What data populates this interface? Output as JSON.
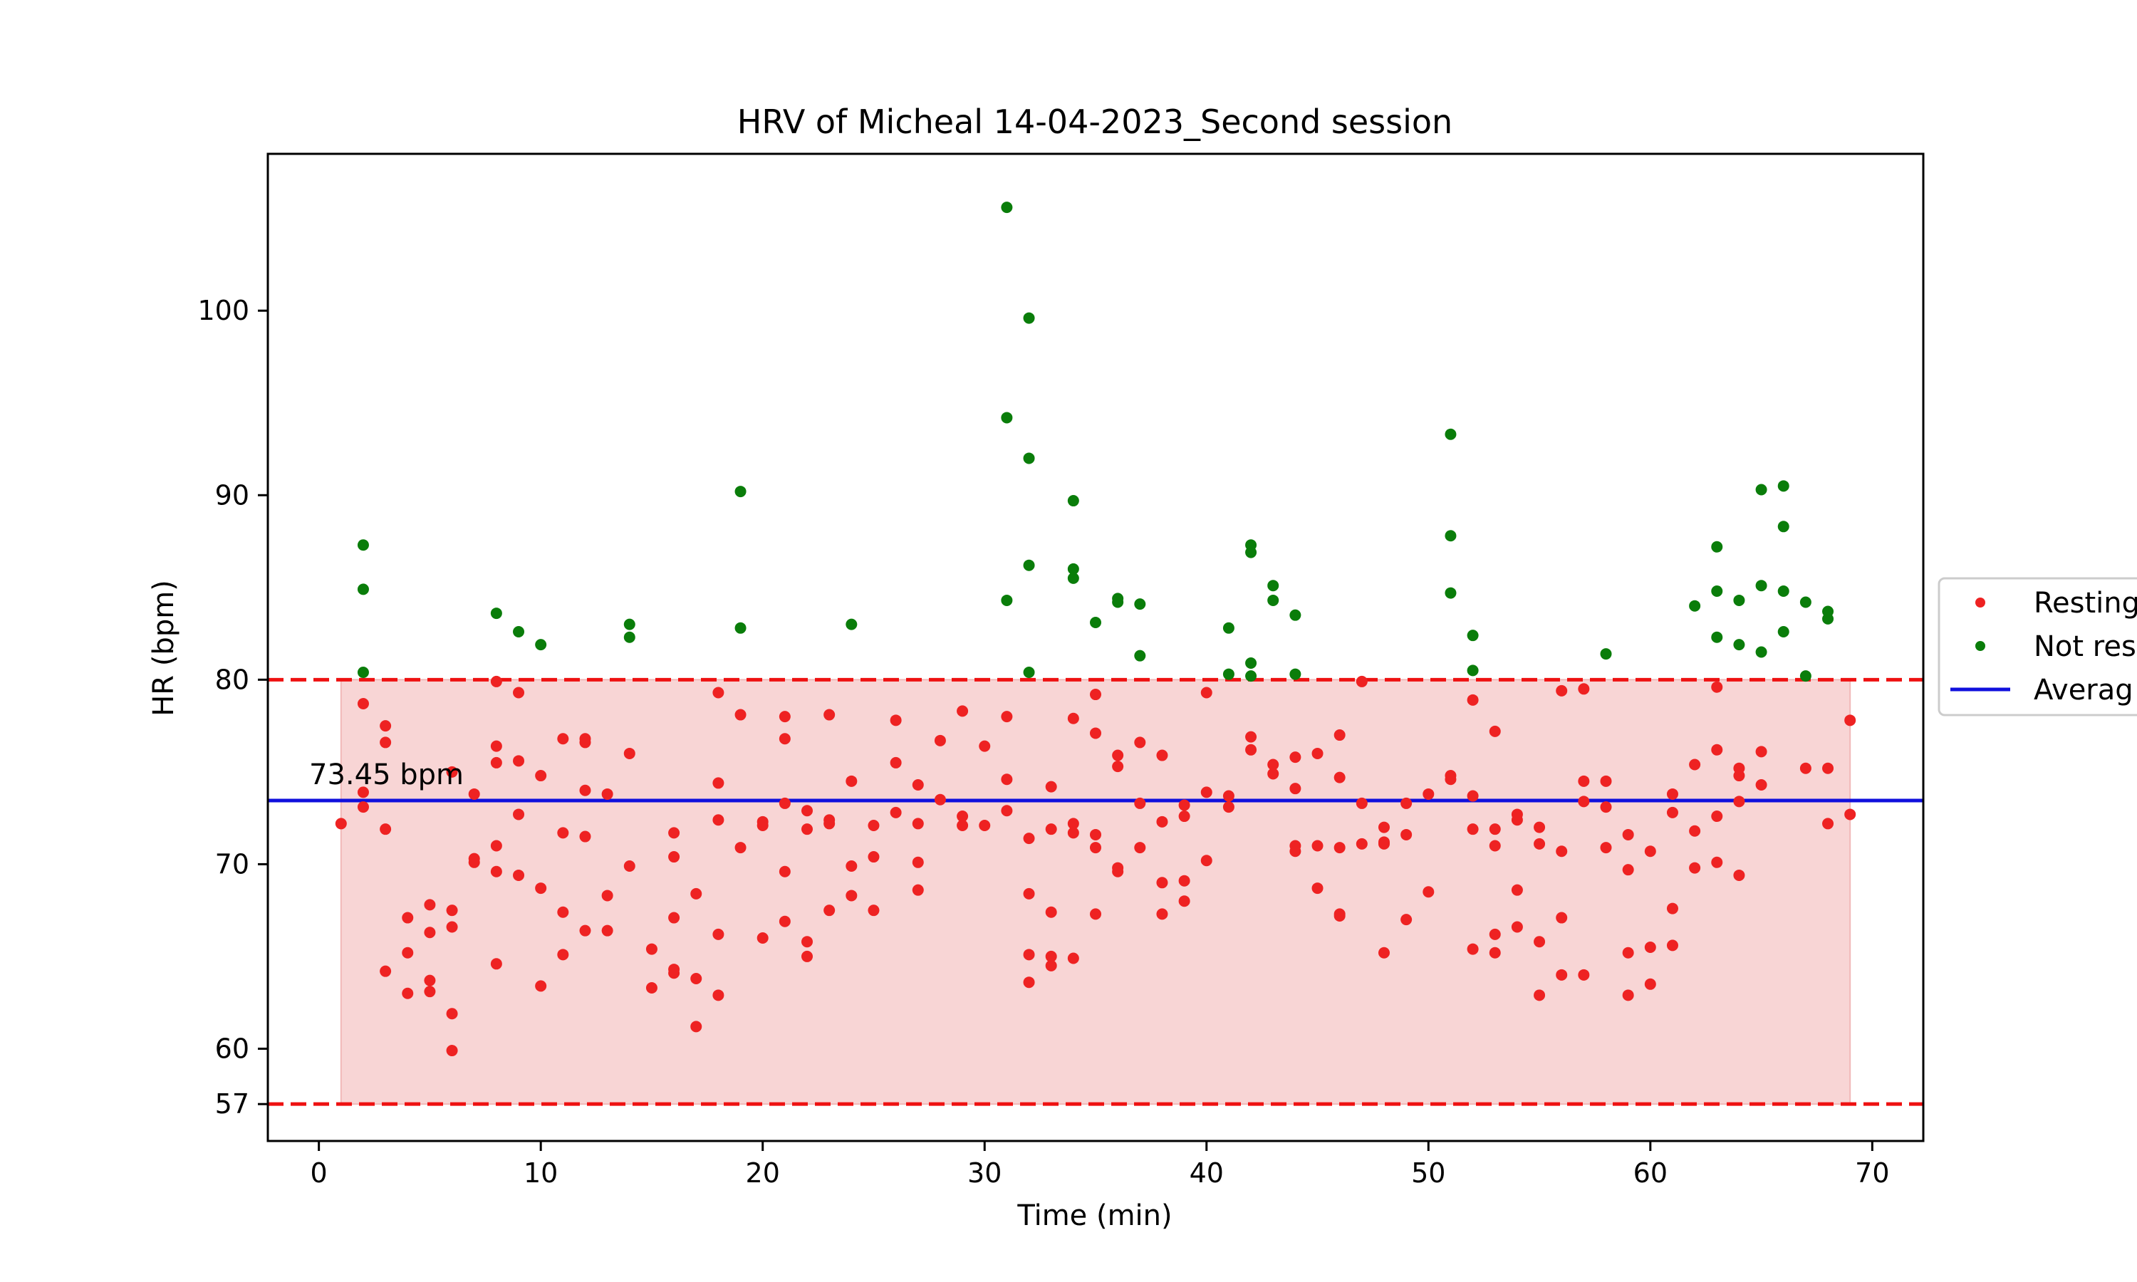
{
  "chart_data": {
    "type": "scatter",
    "title": "HRV of Micheal 14-04-2023_Second session",
    "xlabel": "Time (min)",
    "ylabel": "HR (bpm)",
    "xlim": [
      -2.3,
      72.3
    ],
    "ylim": [
      55,
      108.5
    ],
    "xticks": [
      0,
      10,
      20,
      30,
      40,
      50,
      60,
      70
    ],
    "yticks": [
      57,
      60,
      70,
      80,
      90,
      100
    ],
    "grid": false,
    "legend_position": "center-right (outside plot, clipped)",
    "colors": {
      "resting": "#ee2222",
      "not_resting": "#0a7d0a",
      "average": "#1010dd",
      "band_fill": "#f8d5d5",
      "limit_line": "#ee1111"
    },
    "reference_lines": {
      "upper": 80,
      "lower": 57,
      "average": 73.45
    },
    "band": {
      "x_start": 1,
      "x_end": 69,
      "y_min": 57,
      "y_max": 80
    },
    "annotation": {
      "text": "73.45 bpm",
      "x": -0.5,
      "y": 73.45
    },
    "legend": {
      "resting_label": "Resting",
      "not_resting_label": "Not res",
      "average_label": "Averag"
    },
    "series": [
      {
        "name": "Resting",
        "color": "#ee2222",
        "points": [
          [
            1,
            72.2
          ],
          [
            2,
            78.7
          ],
          [
            2,
            73.9
          ],
          [
            2,
            73.1
          ],
          [
            3,
            77.5
          ],
          [
            3,
            76.6
          ],
          [
            3,
            71.9
          ],
          [
            3,
            64.2
          ],
          [
            4,
            67.1
          ],
          [
            4,
            65.2
          ],
          [
            4,
            63.0
          ],
          [
            5,
            67.8
          ],
          [
            5,
            66.3
          ],
          [
            5,
            63.7
          ],
          [
            5,
            63.1
          ],
          [
            6,
            75.0
          ],
          [
            6,
            67.5
          ],
          [
            6,
            66.6
          ],
          [
            6,
            61.9
          ],
          [
            6,
            59.9
          ],
          [
            7,
            73.8
          ],
          [
            7,
            70.3
          ],
          [
            7,
            70.1
          ],
          [
            8,
            79.9
          ],
          [
            8,
            76.4
          ],
          [
            8,
            75.5
          ],
          [
            8,
            71.0
          ],
          [
            8,
            69.6
          ],
          [
            8,
            64.6
          ],
          [
            9,
            79.3
          ],
          [
            9,
            75.6
          ],
          [
            9,
            72.7
          ],
          [
            9,
            69.4
          ],
          [
            10,
            74.8
          ],
          [
            10,
            68.7
          ],
          [
            10,
            63.4
          ],
          [
            11,
            76.8
          ],
          [
            11,
            71.7
          ],
          [
            11,
            67.4
          ],
          [
            11,
            65.1
          ],
          [
            12,
            76.8
          ],
          [
            12,
            76.6
          ],
          [
            12,
            74.0
          ],
          [
            12,
            71.5
          ],
          [
            12,
            66.4
          ],
          [
            13,
            73.8
          ],
          [
            13,
            68.3
          ],
          [
            13,
            66.4
          ],
          [
            14,
            76.0
          ],
          [
            14,
            69.9
          ],
          [
            15,
            65.4
          ],
          [
            15,
            63.3
          ],
          [
            16,
            71.7
          ],
          [
            16,
            70.4
          ],
          [
            16,
            67.1
          ],
          [
            16,
            64.3
          ],
          [
            16,
            64.1
          ],
          [
            17,
            68.4
          ],
          [
            17,
            63.8
          ],
          [
            17,
            61.2
          ],
          [
            18,
            79.3
          ],
          [
            18,
            74.4
          ],
          [
            18,
            72.4
          ],
          [
            18,
            66.2
          ],
          [
            18,
            62.9
          ],
          [
            19,
            78.1
          ],
          [
            19,
            70.9
          ],
          [
            20,
            72.3
          ],
          [
            20,
            72.1
          ],
          [
            20,
            66.0
          ],
          [
            21,
            78.0
          ],
          [
            21,
            76.8
          ],
          [
            21,
            73.3
          ],
          [
            21,
            69.6
          ],
          [
            21,
            66.9
          ],
          [
            22,
            72.9
          ],
          [
            22,
            71.9
          ],
          [
            22,
            65.8
          ],
          [
            22,
            65.0
          ],
          [
            23,
            78.1
          ],
          [
            23,
            72.4
          ],
          [
            23,
            72.2
          ],
          [
            23,
            67.5
          ],
          [
            24,
            74.5
          ],
          [
            24,
            69.9
          ],
          [
            24,
            68.3
          ],
          [
            25,
            72.1
          ],
          [
            25,
            70.4
          ],
          [
            25,
            67.5
          ],
          [
            26,
            77.8
          ],
          [
            26,
            75.5
          ],
          [
            26,
            72.8
          ],
          [
            27,
            74.3
          ],
          [
            27,
            72.2
          ],
          [
            27,
            70.1
          ],
          [
            27,
            68.6
          ],
          [
            28,
            76.7
          ],
          [
            28,
            73.5
          ],
          [
            29,
            78.3
          ],
          [
            29,
            72.6
          ],
          [
            29,
            72.1
          ],
          [
            30,
            76.4
          ],
          [
            30,
            72.1
          ],
          [
            31,
            78.0
          ],
          [
            31,
            74.6
          ],
          [
            31,
            72.9
          ],
          [
            32,
            71.4
          ],
          [
            32,
            68.4
          ],
          [
            32,
            65.1
          ],
          [
            32,
            63.6
          ],
          [
            33,
            74.2
          ],
          [
            33,
            71.9
          ],
          [
            33,
            67.4
          ],
          [
            33,
            65.0
          ],
          [
            33,
            64.5
          ],
          [
            34,
            77.9
          ],
          [
            34,
            72.2
          ],
          [
            34,
            71.7
          ],
          [
            34,
            64.9
          ],
          [
            35,
            79.2
          ],
          [
            35,
            77.1
          ],
          [
            35,
            71.6
          ],
          [
            35,
            70.9
          ],
          [
            35,
            67.3
          ],
          [
            36,
            75.9
          ],
          [
            36,
            75.3
          ],
          [
            36,
            69.8
          ],
          [
            36,
            69.6
          ],
          [
            37,
            76.6
          ],
          [
            37,
            73.3
          ],
          [
            37,
            70.9
          ],
          [
            38,
            75.9
          ],
          [
            38,
            72.3
          ],
          [
            38,
            69.0
          ],
          [
            38,
            67.3
          ],
          [
            39,
            73.2
          ],
          [
            39,
            72.6
          ],
          [
            39,
            69.1
          ],
          [
            39,
            68.0
          ],
          [
            40,
            79.3
          ],
          [
            40,
            73.9
          ],
          [
            40,
            70.2
          ],
          [
            41,
            73.7
          ],
          [
            41,
            73.1
          ],
          [
            42,
            76.9
          ],
          [
            42,
            76.2
          ],
          [
            43,
            75.4
          ],
          [
            43,
            74.9
          ],
          [
            44,
            75.8
          ],
          [
            44,
            74.1
          ],
          [
            44,
            71.0
          ],
          [
            44,
            70.7
          ],
          [
            45,
            76.0
          ],
          [
            45,
            71.0
          ],
          [
            45,
            68.7
          ],
          [
            46,
            77.0
          ],
          [
            46,
            74.7
          ],
          [
            46,
            70.9
          ],
          [
            46,
            67.3
          ],
          [
            46,
            67.2
          ],
          [
            47,
            79.9
          ],
          [
            47,
            73.3
          ],
          [
            47,
            71.1
          ],
          [
            48,
            72.0
          ],
          [
            48,
            71.2
          ],
          [
            48,
            71.1
          ],
          [
            48,
            65.2
          ],
          [
            49,
            73.3
          ],
          [
            49,
            71.6
          ],
          [
            49,
            67.0
          ],
          [
            50,
            73.8
          ],
          [
            50,
            68.5
          ],
          [
            51,
            74.8
          ],
          [
            51,
            74.6
          ],
          [
            52,
            78.9
          ],
          [
            52,
            73.7
          ],
          [
            52,
            71.9
          ],
          [
            52,
            65.4
          ],
          [
            53,
            77.2
          ],
          [
            53,
            71.9
          ],
          [
            53,
            71.0
          ],
          [
            53,
            66.2
          ],
          [
            53,
            65.2
          ],
          [
            54,
            72.7
          ],
          [
            54,
            72.4
          ],
          [
            54,
            68.6
          ],
          [
            54,
            66.6
          ],
          [
            55,
            72.0
          ],
          [
            55,
            71.1
          ],
          [
            55,
            65.8
          ],
          [
            55,
            62.9
          ],
          [
            56,
            79.4
          ],
          [
            56,
            70.7
          ],
          [
            56,
            67.1
          ],
          [
            56,
            64.0
          ],
          [
            57,
            79.5
          ],
          [
            57,
            74.5
          ],
          [
            57,
            73.4
          ],
          [
            57,
            64.0
          ],
          [
            58,
            74.5
          ],
          [
            58,
            73.1
          ],
          [
            58,
            70.9
          ],
          [
            59,
            71.6
          ],
          [
            59,
            69.7
          ],
          [
            59,
            65.2
          ],
          [
            59,
            62.9
          ],
          [
            60,
            70.7
          ],
          [
            60,
            65.5
          ],
          [
            60,
            63.5
          ],
          [
            61,
            73.8
          ],
          [
            61,
            72.8
          ],
          [
            61,
            67.6
          ],
          [
            61,
            65.6
          ],
          [
            62,
            75.4
          ],
          [
            62,
            71.8
          ],
          [
            62,
            69.8
          ],
          [
            63,
            79.6
          ],
          [
            63,
            76.2
          ],
          [
            63,
            72.6
          ],
          [
            63,
            70.1
          ],
          [
            64,
            75.2
          ],
          [
            64,
            74.8
          ],
          [
            64,
            73.4
          ],
          [
            64,
            69.4
          ],
          [
            65,
            76.1
          ],
          [
            65,
            74.3
          ],
          [
            67,
            75.2
          ],
          [
            68,
            75.2
          ],
          [
            68,
            72.2
          ],
          [
            69,
            77.8
          ],
          [
            69,
            72.7
          ]
        ]
      },
      {
        "name": "Not res",
        "color": "#0a7d0a",
        "points": [
          [
            2,
            87.3
          ],
          [
            2,
            84.9
          ],
          [
            2,
            80.4
          ],
          [
            8,
            83.6
          ],
          [
            9,
            82.6
          ],
          [
            10,
            81.9
          ],
          [
            14,
            83.0
          ],
          [
            14,
            82.3
          ],
          [
            19,
            90.2
          ],
          [
            19,
            82.8
          ],
          [
            24,
            83.0
          ],
          [
            31,
            105.6
          ],
          [
            31,
            94.2
          ],
          [
            31,
            84.3
          ],
          [
            32,
            99.6
          ],
          [
            32,
            92.0
          ],
          [
            32,
            86.2
          ],
          [
            32,
            80.4
          ],
          [
            34,
            89.7
          ],
          [
            34,
            86.0
          ],
          [
            34,
            85.5
          ],
          [
            35,
            83.1
          ],
          [
            36,
            84.4
          ],
          [
            36,
            84.2
          ],
          [
            37,
            84.1
          ],
          [
            37,
            81.3
          ],
          [
            41,
            82.8
          ],
          [
            41,
            80.3
          ],
          [
            42,
            87.3
          ],
          [
            42,
            86.9
          ],
          [
            42,
            80.9
          ],
          [
            42,
            80.2
          ],
          [
            43,
            85.1
          ],
          [
            43,
            84.3
          ],
          [
            44,
            83.5
          ],
          [
            44,
            80.3
          ],
          [
            51,
            93.3
          ],
          [
            51,
            87.8
          ],
          [
            51,
            84.7
          ],
          [
            52,
            82.4
          ],
          [
            52,
            80.5
          ],
          [
            58,
            81.4
          ],
          [
            62,
            84.0
          ],
          [
            63,
            87.2
          ],
          [
            63,
            84.8
          ],
          [
            63,
            82.3
          ],
          [
            64,
            84.3
          ],
          [
            64,
            81.9
          ],
          [
            65,
            90.3
          ],
          [
            65,
            85.1
          ],
          [
            65,
            81.5
          ],
          [
            66,
            90.5
          ],
          [
            66,
            88.3
          ],
          [
            66,
            84.8
          ],
          [
            66,
            82.6
          ],
          [
            67,
            84.2
          ],
          [
            67,
            80.2
          ],
          [
            68,
            83.7
          ],
          [
            68,
            83.3
          ]
        ]
      }
    ]
  }
}
